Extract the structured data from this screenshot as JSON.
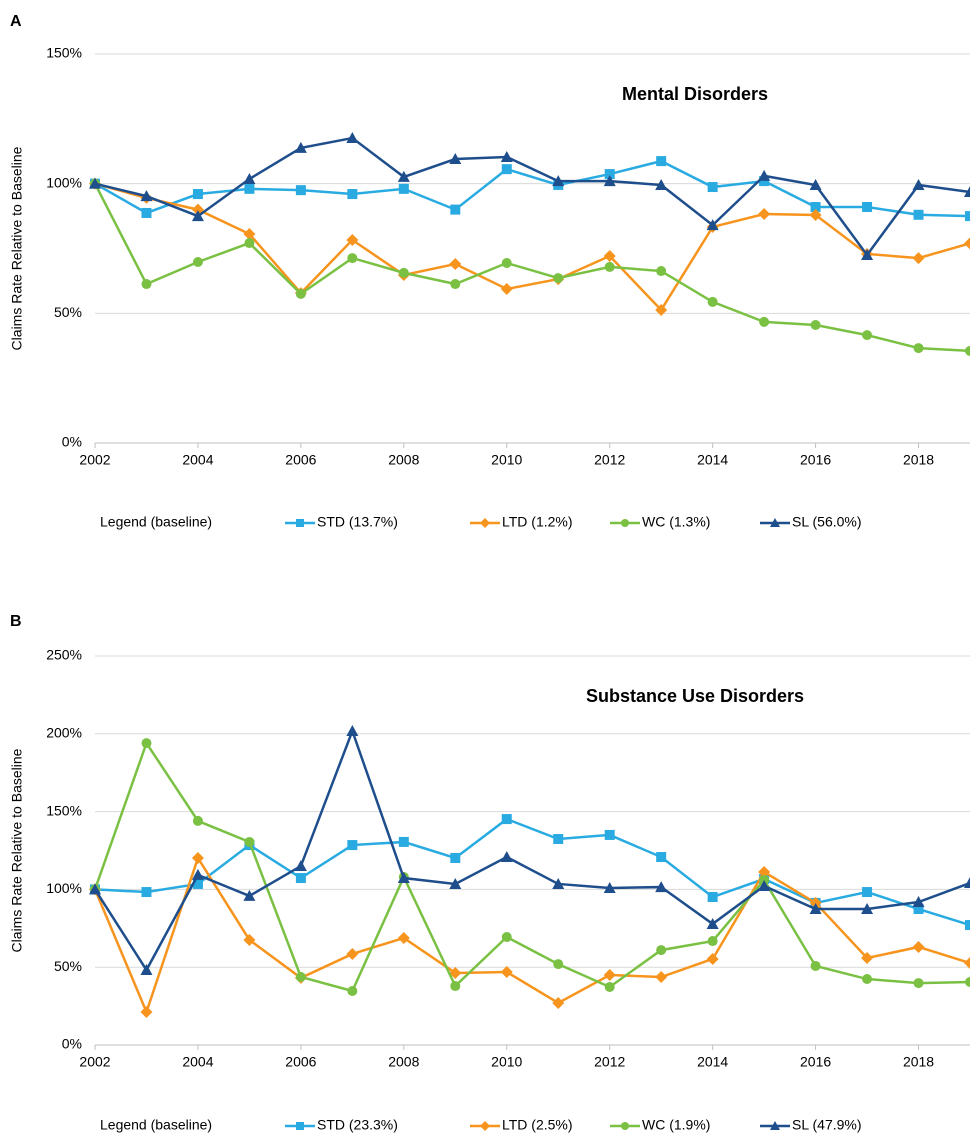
{
  "chart_data": [
    {
      "type": "line",
      "panel_label": "A",
      "title": "Mental Disorders",
      "ylabel": "Claims Rate Relative to Baseline",
      "legend_title": "Legend (baseline)",
      "grid": true,
      "x": [
        2002,
        2003,
        2004,
        2005,
        2006,
        2007,
        2008,
        2009,
        2010,
        2011,
        2012,
        2013,
        2014,
        2015,
        2016,
        2017,
        2018,
        2019
      ],
      "xlim": [
        2002,
        2019
      ],
      "xticks": [
        2002,
        2004,
        2006,
        2008,
        2010,
        2012,
        2014,
        2016,
        2018
      ],
      "ylim": [
        0,
        150
      ],
      "yticks": [
        {
          "value": 0,
          "label": "0%"
        },
        {
          "value": 50,
          "label": "50%"
        },
        {
          "value": 100,
          "label": "100%"
        },
        {
          "value": 150,
          "label": "150%"
        }
      ],
      "series": [
        {
          "name": "STD (13.7%)",
          "color": "#29abe2",
          "marker": "square",
          "values": [
            100,
            88.7,
            96,
            98,
            97.5,
            96,
            98,
            90,
            105.6,
            99.5,
            103.7,
            108.7,
            98.7,
            101,
            91,
            91,
            88,
            87.5
          ]
        },
        {
          "name": "LTD  (1.2%)",
          "color": "#f7941d",
          "marker": "diamond",
          "values": [
            100,
            94.5,
            90,
            80.6,
            57.8,
            78.3,
            64.8,
            69,
            59.4,
            63.2,
            72.1,
            51.3,
            83.3,
            88.3,
            87.9,
            72.9,
            71.3,
            77
          ]
        },
        {
          "name": "WC (1.3%)",
          "color": "#7ac143",
          "marker": "circle",
          "values": [
            100,
            61.3,
            69.8,
            77.1,
            57.5,
            71.3,
            65.6,
            61.3,
            69.4,
            63.6,
            67.9,
            66.3,
            54.4,
            46.7,
            45.5,
            41.6,
            36.6,
            35.5
          ]
        },
        {
          "name": "SL (56.0%)",
          "color": "#1f4e8c",
          "marker": "triangle",
          "values": [
            100,
            95.2,
            87.5,
            101.8,
            113.8,
            117.6,
            102.6,
            109.5,
            110.3,
            101,
            101,
            99.5,
            84,
            103,
            99.5,
            72.5,
            99.5,
            96.8
          ]
        }
      ]
    },
    {
      "type": "line",
      "panel_label": "B",
      "title": "Substance Use Disorders",
      "ylabel": "Claims Rate Relative to Baseline",
      "legend_title": "Legend (baseline)",
      "grid": true,
      "x": [
        2002,
        2003,
        2004,
        2005,
        2006,
        2007,
        2008,
        2009,
        2010,
        2011,
        2012,
        2013,
        2014,
        2015,
        2016,
        2017,
        2018,
        2019
      ],
      "xlim": [
        2002,
        2019
      ],
      "xticks": [
        2002,
        2004,
        2006,
        2008,
        2010,
        2012,
        2014,
        2016,
        2018
      ],
      "ylim": [
        0,
        250
      ],
      "yticks": [
        {
          "value": 0,
          "label": "0%"
        },
        {
          "value": 50,
          "label": "50%"
        },
        {
          "value": 100,
          "label": "100%"
        },
        {
          "value": 150,
          "label": "150%"
        },
        {
          "value": 200,
          "label": "200%"
        },
        {
          "value": 250,
          "label": "250%"
        }
      ],
      "series": [
        {
          "name": "STD (23.3%)",
          "color": "#29abe2",
          "marker": "square",
          "values": [
            100,
            98.3,
            103.5,
            128.5,
            107.3,
            128.5,
            130.5,
            120.2,
            145.2,
            132.4,
            135,
            120.8,
            95.1,
            106.7,
            91.3,
            98.3,
            87.4,
            77.1
          ]
        },
        {
          "name": "LTD  (2.5%)",
          "color": "#f7941d",
          "marker": "diamond",
          "values": [
            100,
            21.2,
            120.2,
            67.5,
            43.1,
            58.5,
            68.8,
            46.3,
            46.9,
            27,
            45,
            43.7,
            55.3,
            111.2,
            91.3,
            55.9,
            63,
            52.7
          ]
        },
        {
          "name": "WC (1.9%)",
          "color": "#7ac143",
          "marker": "circle",
          "values": [
            100,
            194,
            144,
            130.5,
            43.7,
            34.7,
            108,
            37.9,
            69.4,
            52,
            37.3,
            61,
            66.8,
            106,
            50.8,
            42.4,
            39.8,
            40.5
          ]
        },
        {
          "name": "SL (47.9%)",
          "color": "#1f4e8c",
          "marker": "triangle",
          "values": [
            100,
            48.2,
            109.3,
            95.8,
            115,
            201.8,
            107.3,
            103.5,
            120.8,
            103.5,
            100.9,
            101.5,
            77.8,
            102.2,
            87.4,
            87.4,
            91.9,
            104.1
          ]
        }
      ]
    }
  ]
}
